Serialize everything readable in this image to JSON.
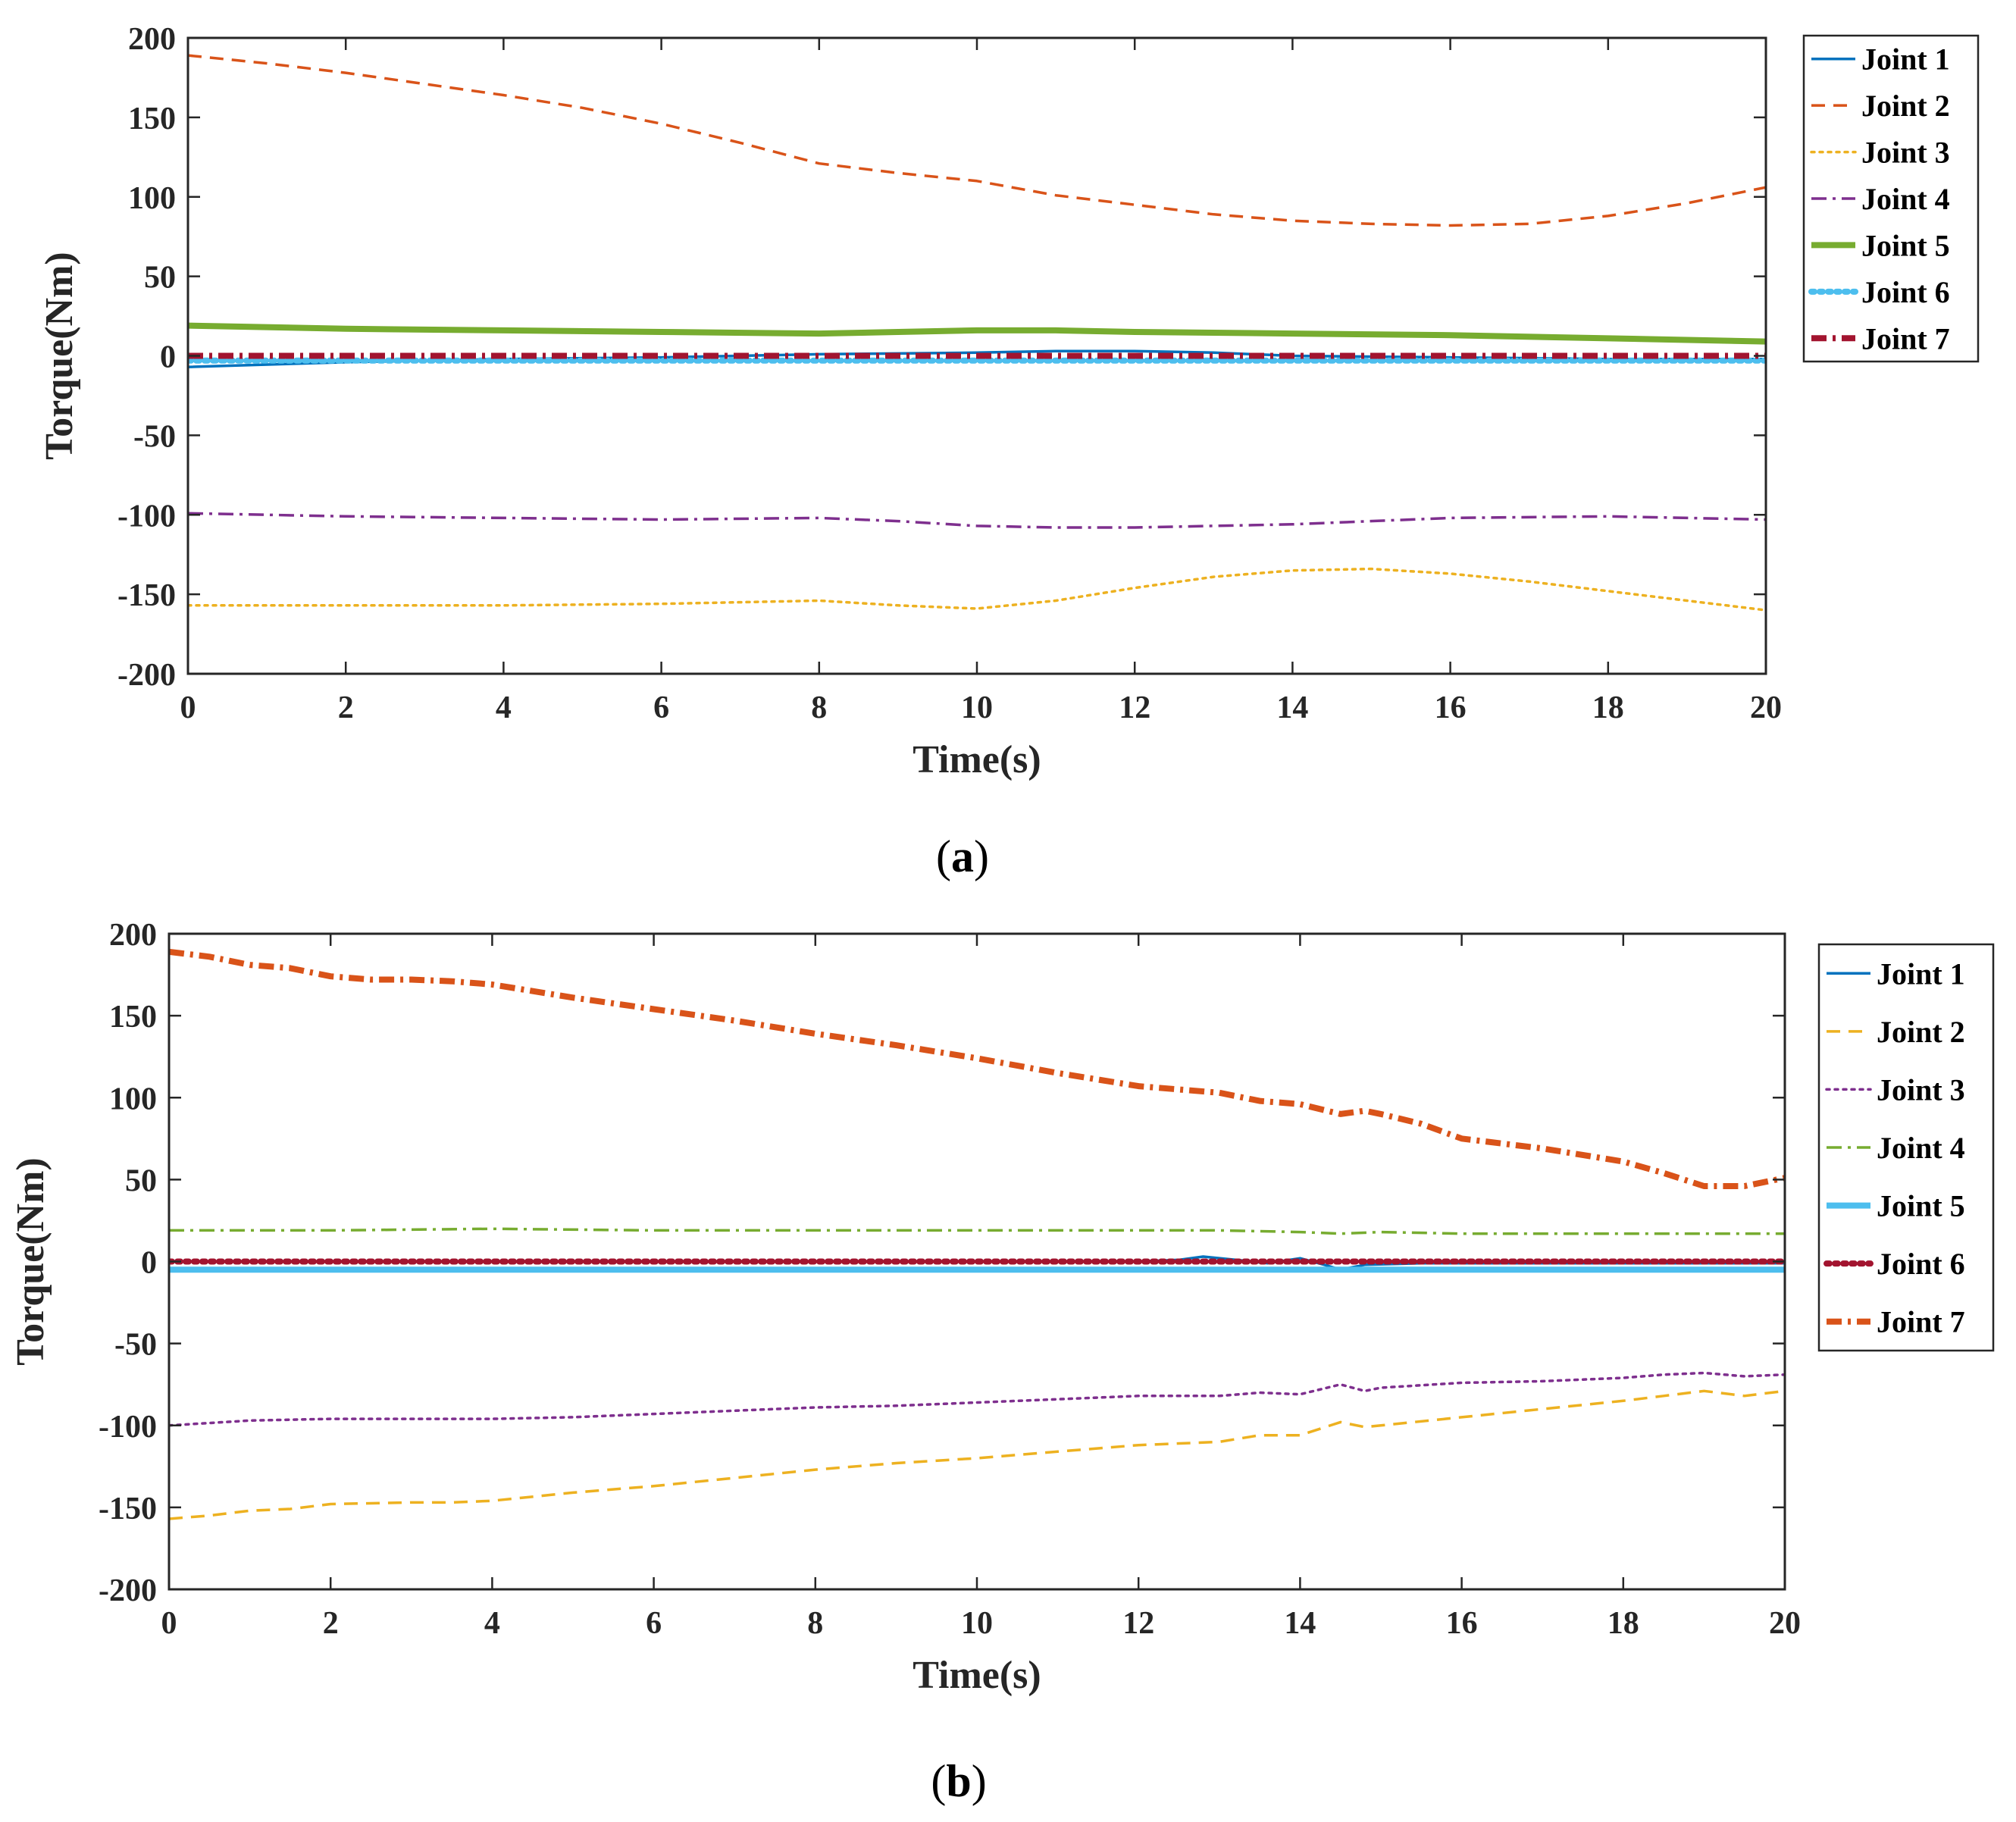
{
  "chart_data": [
    {
      "id": "a",
      "type": "line",
      "caption_letter": "a",
      "xlabel": "Time(s)",
      "ylabel": "Torque(Nm)",
      "xlim": [
        0,
        20
      ],
      "ylim": [
        -200,
        200
      ],
      "xticks": [
        0,
        2,
        4,
        6,
        8,
        10,
        12,
        14,
        16,
        18,
        20
      ],
      "yticks": [
        200,
        150,
        100,
        50,
        0,
        -50,
        -100,
        -150,
        -200
      ],
      "grid": false,
      "legend_position": "outside-top-right",
      "series": [
        {
          "name": "Joint 1",
          "color": "#0072BD",
          "style": "solid",
          "width": "normal",
          "x": [
            0,
            2,
            4,
            6,
            8,
            10,
            11,
            12,
            13,
            14,
            16,
            18,
            20
          ],
          "y": [
            -7,
            -4,
            -2,
            -1,
            1,
            2,
            3,
            3,
            2,
            0,
            -1,
            -2,
            -2
          ]
        },
        {
          "name": "Joint 2",
          "color": "#D95319",
          "style": "dashed",
          "width": "normal",
          "x": [
            0,
            1,
            2,
            3,
            4,
            5,
            6,
            7,
            8,
            9,
            10,
            11,
            12,
            13,
            14,
            15,
            16,
            17,
            18,
            19,
            20
          ],
          "y": [
            189,
            184,
            178,
            171,
            164,
            156,
            146,
            134,
            121,
            115,
            110,
            101,
            95,
            89,
            85,
            83,
            82,
            83,
            88,
            96,
            106
          ]
        },
        {
          "name": "Joint 3",
          "color": "#EDB120",
          "style": "dotted",
          "width": "normal",
          "x": [
            0,
            2,
            4,
            6,
            7,
            8,
            9,
            10,
            11,
            12,
            13,
            14,
            15,
            16,
            17,
            18,
            19,
            20
          ],
          "y": [
            -157,
            -157,
            -157,
            -156,
            -155,
            -154,
            -157,
            -159,
            -154,
            -146,
            -139,
            -135,
            -134,
            -137,
            -142,
            -148,
            -154,
            -160
          ]
        },
        {
          "name": "Joint 4",
          "color": "#7E2F8E",
          "style": "dashdot",
          "width": "normal",
          "x": [
            0,
            2,
            4,
            6,
            8,
            9,
            10,
            11,
            12,
            13,
            14,
            16,
            18,
            20
          ],
          "y": [
            -99,
            -101,
            -102,
            -103,
            -102,
            -104,
            -107,
            -108,
            -108,
            -107,
            -106,
            -102,
            -101,
            -103
          ]
        },
        {
          "name": "Joint 5",
          "color": "#77AC30",
          "style": "solid",
          "width": "thick",
          "x": [
            0,
            2,
            4,
            6,
            8,
            9,
            10,
            11,
            12,
            14,
            16,
            18,
            20
          ],
          "y": [
            19,
            17,
            16,
            15,
            14,
            15,
            16,
            16,
            15,
            14,
            13,
            11,
            9
          ]
        },
        {
          "name": "Joint 6",
          "color": "#4DBEEE",
          "style": "dotted",
          "width": "thick",
          "x": [
            0,
            20
          ],
          "y": [
            -3,
            -3
          ]
        },
        {
          "name": "Joint 7",
          "color": "#A2142F",
          "style": "dashdot",
          "width": "thick",
          "x": [
            0,
            20
          ],
          "y": [
            0,
            0
          ]
        }
      ]
    },
    {
      "id": "b",
      "type": "line",
      "caption_letter": "b",
      "xlabel": "Time(s)",
      "ylabel": "Torque(Nm)",
      "xlim": [
        0,
        20
      ],
      "ylim": [
        -200,
        200
      ],
      "xticks": [
        0,
        2,
        4,
        6,
        8,
        10,
        12,
        14,
        16,
        18,
        20
      ],
      "yticks": [
        200,
        150,
        100,
        50,
        0,
        -50,
        -100,
        -150,
        -200
      ],
      "grid": false,
      "legend_position": "outside-top-right",
      "series": [
        {
          "name": "Joint 1",
          "color": "#0072BD",
          "style": "solid",
          "width": "normal",
          "x": [
            0,
            12,
            12.5,
            12.8,
            13.2,
            13.6,
            14,
            14.3,
            14.5,
            14.8,
            15.5,
            20
          ],
          "y": [
            0,
            0,
            1,
            3,
            1,
            -1,
            2,
            -2,
            -5,
            -2,
            -1,
            -1
          ]
        },
        {
          "name": "Joint 2",
          "color": "#EDB120",
          "style": "dashed",
          "width": "normal",
          "x": [
            0,
            0.5,
            1,
            1.5,
            2,
            3,
            3.5,
            4,
            5,
            6,
            7,
            8,
            9,
            10,
            11,
            12,
            13,
            13.5,
            14,
            14.5,
            14.8,
            15,
            16,
            17,
            18,
            18.5,
            19,
            19.5,
            20
          ],
          "y": [
            -157,
            -155,
            -152,
            -151,
            -148,
            -147,
            -147,
            -146,
            -141,
            -137,
            -132,
            -127,
            -123,
            -120,
            -116,
            -112,
            -110,
            -106,
            -106,
            -98,
            -101,
            -100,
            -95,
            -90,
            -85,
            -82,
            -79,
            -82,
            -79
          ]
        },
        {
          "name": "Joint 3",
          "color": "#7E2F8E",
          "style": "dotted",
          "width": "normal",
          "x": [
            0,
            1,
            2,
            3,
            4,
            5,
            6,
            7,
            8,
            9,
            10,
            11,
            12,
            13,
            13.5,
            14,
            14.5,
            14.8,
            15,
            16,
            17,
            18,
            18.5,
            19,
            19.5,
            20
          ],
          "y": [
            -100,
            -97,
            -96,
            -96,
            -96,
            -95,
            -93,
            -91,
            -89,
            -88,
            -86,
            -84,
            -82,
            -82,
            -80,
            -81,
            -75,
            -79,
            -77,
            -74,
            -73,
            -71,
            -69,
            -68,
            -70,
            -69
          ]
        },
        {
          "name": "Joint 4",
          "color": "#77AC30",
          "style": "dashdot",
          "width": "normal",
          "x": [
            0,
            2,
            4,
            6,
            8,
            10,
            12,
            13,
            14,
            14.5,
            15,
            16,
            18,
            20
          ],
          "y": [
            19,
            19,
            20,
            19,
            19,
            19,
            19,
            19,
            18,
            17,
            18,
            17,
            17,
            17
          ]
        },
        {
          "name": "Joint 5",
          "color": "#4DBEEE",
          "style": "solid",
          "width": "thick",
          "x": [
            0,
            20
          ],
          "y": [
            -5,
            -5
          ]
        },
        {
          "name": "Joint 6",
          "color": "#A2142F",
          "style": "dotted",
          "width": "thick",
          "x": [
            0,
            20
          ],
          "y": [
            0,
            0
          ]
        },
        {
          "name": "Joint 7",
          "color": "#D95319",
          "style": "dashdot",
          "width": "thick",
          "x": [
            0,
            0.5,
            1,
            1.5,
            2,
            2.5,
            3,
            3.5,
            4,
            5,
            6,
            7,
            8,
            9,
            10,
            11,
            12,
            13,
            13.5,
            14,
            14.5,
            14.8,
            15,
            15.5,
            16,
            17,
            18,
            18.5,
            19,
            19.5,
            20
          ],
          "y": [
            189,
            186,
            181,
            179,
            174,
            172,
            172,
            171,
            169,
            161,
            154,
            147,
            139,
            132,
            124,
            115,
            107,
            103,
            98,
            96,
            90,
            92,
            90,
            84,
            75,
            69,
            61,
            54,
            46,
            46,
            51
          ]
        }
      ]
    }
  ]
}
